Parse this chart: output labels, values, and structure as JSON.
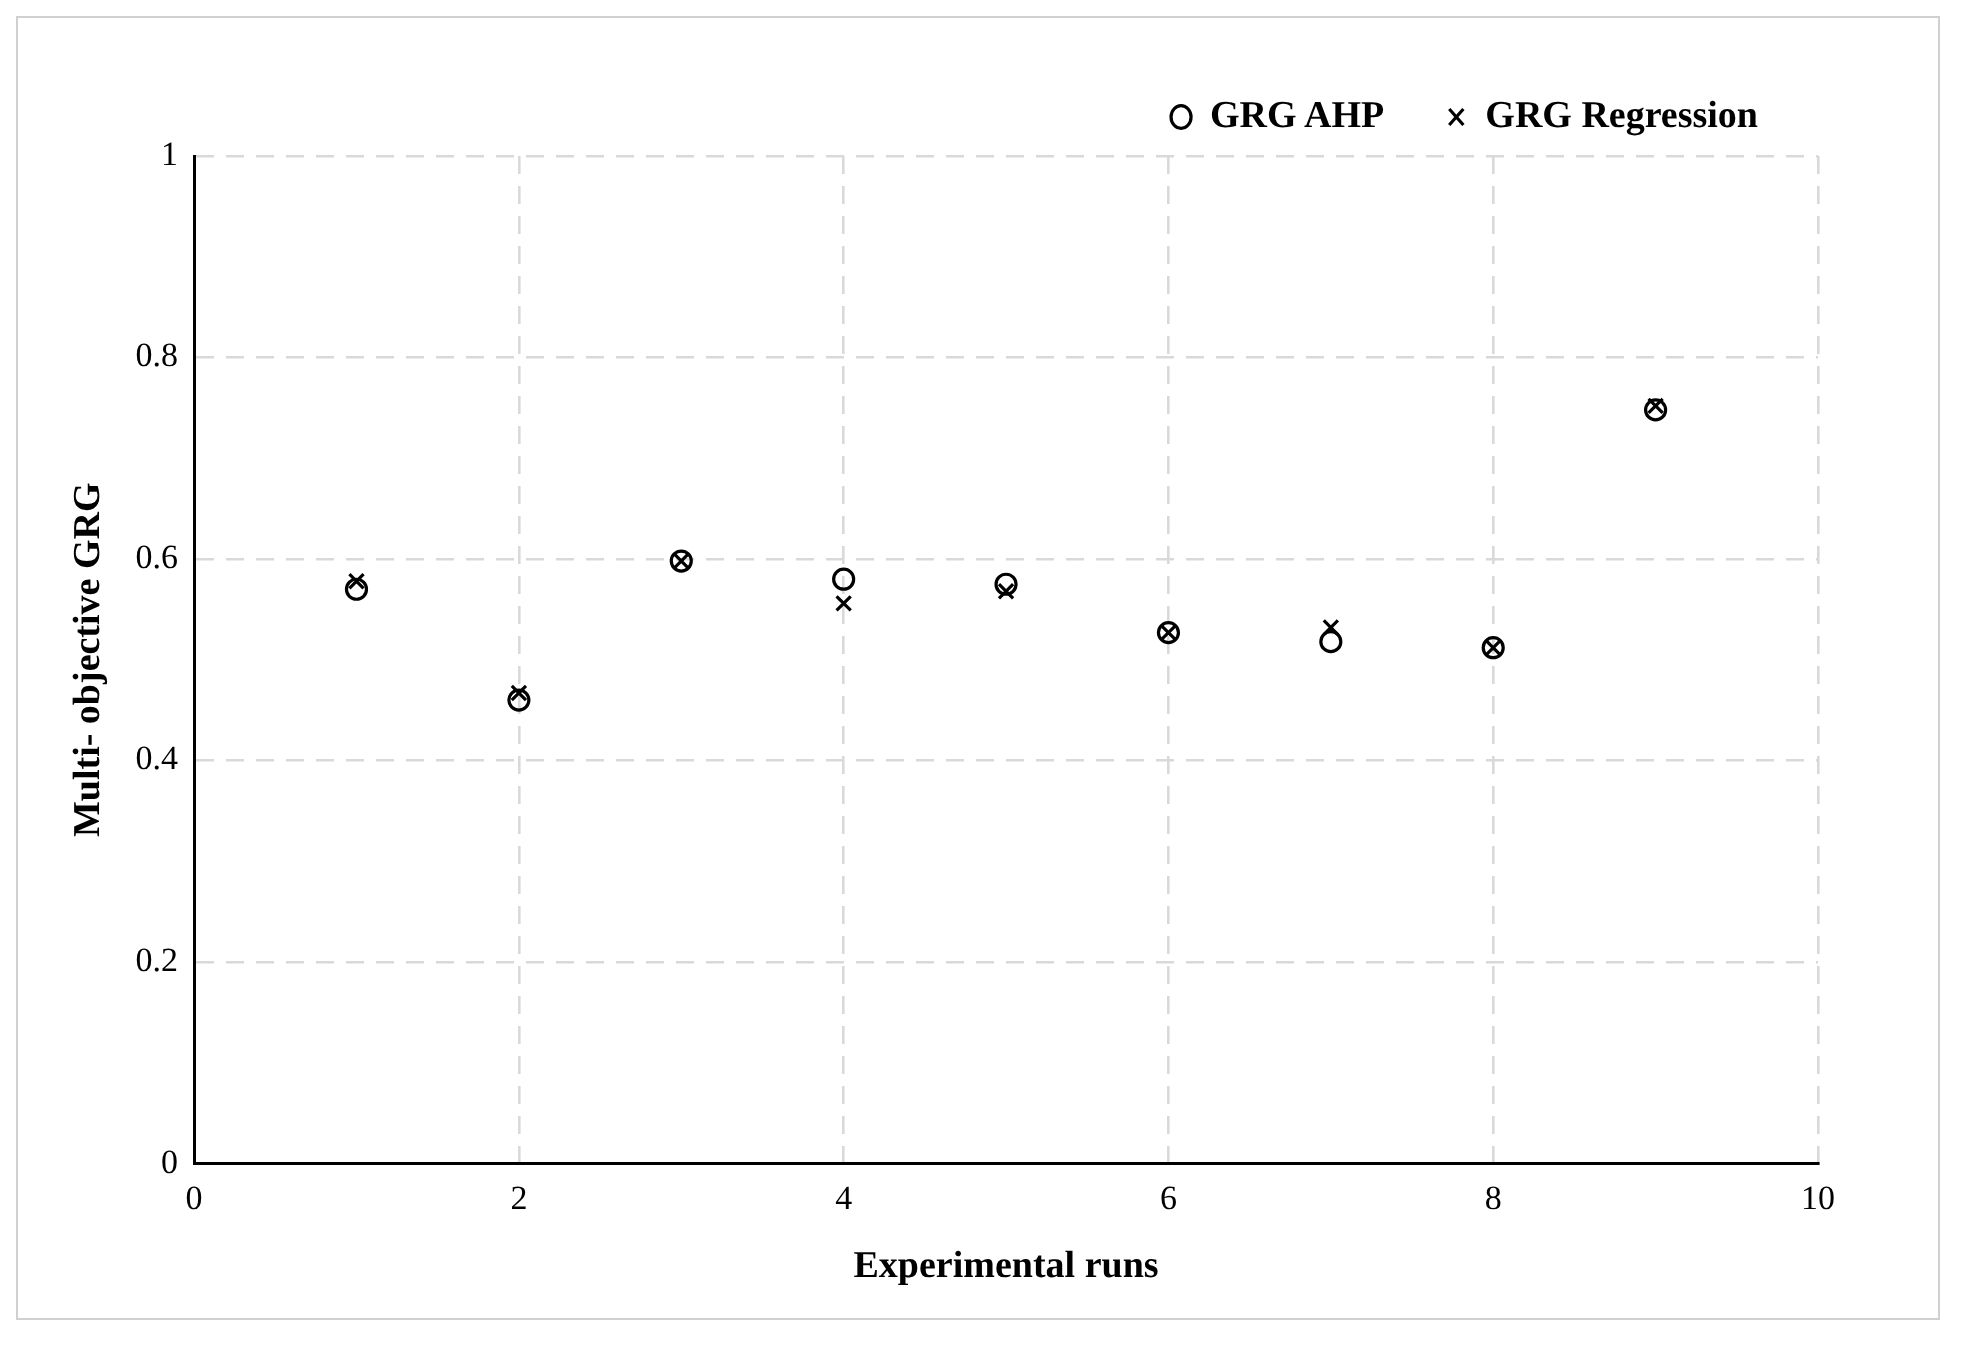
{
  "chart_data": {
    "type": "scatter",
    "xlabel": "Experimental runs",
    "ylabel": "Multi- objective GRG",
    "x": [
      1,
      2,
      3,
      4,
      5,
      6,
      7,
      8,
      9
    ],
    "series": [
      {
        "name": "GRG AHP",
        "color": "#000000",
        "marker": "circle",
        "values": [
          0.57,
          0.46,
          0.598,
          0.58,
          0.575,
          0.527,
          0.518,
          0.512,
          0.748
        ]
      },
      {
        "name": "GRG Regression",
        "color": "#000000",
        "marker": "cross",
        "values": [
          0.578,
          0.467,
          0.598,
          0.556,
          0.568,
          0.527,
          0.532,
          0.512,
          0.752
        ]
      }
    ],
    "xlim": [
      0,
      10
    ],
    "xticks": [
      0,
      2,
      4,
      6,
      8,
      10
    ],
    "ylim": [
      0,
      1
    ],
    "yticks": [
      0,
      0.2,
      0.4,
      0.6,
      0.8,
      1
    ],
    "grid": true,
    "legend": "top right"
  }
}
